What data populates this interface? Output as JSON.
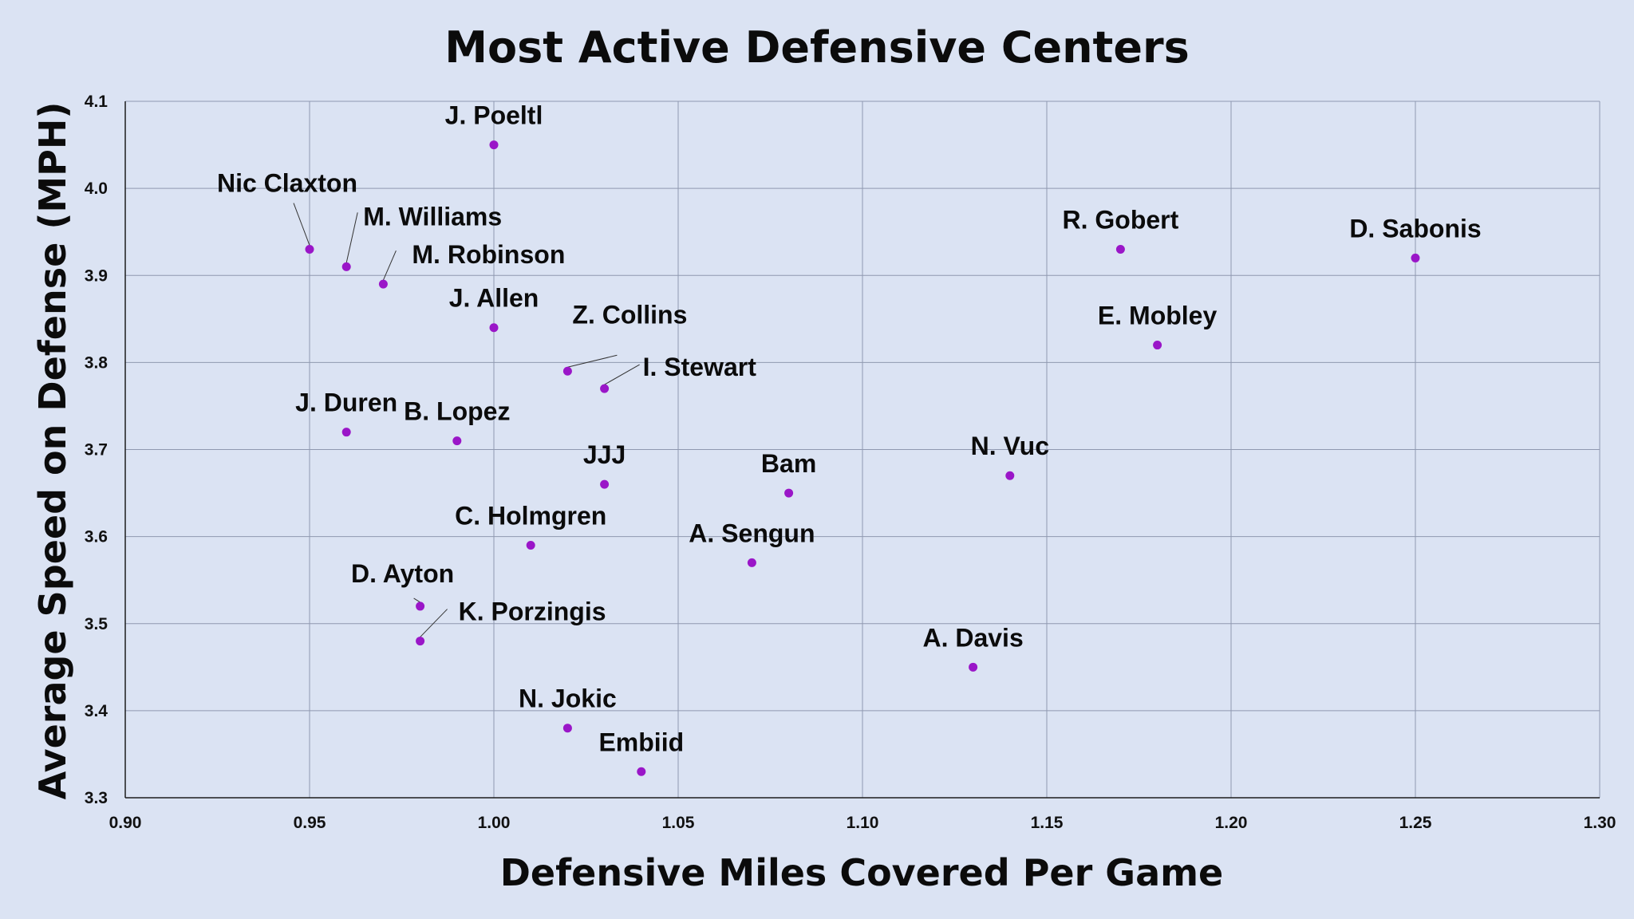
{
  "colors": {
    "background": "#dbe3f3",
    "grid": "#8f98b0",
    "point": "#9a16c8"
  },
  "chart_data": {
    "type": "scatter",
    "title": "Most Active Defensive Centers",
    "xlabel": "Defensive Miles Covered Per Game",
    "ylabel": "Average Speed on Defense (MPH)",
    "xlim": [
      0.9,
      1.3
    ],
    "ylim": [
      3.3,
      4.1
    ],
    "x_ticks": [
      "0.90",
      "0.95",
      "1.00",
      "1.05",
      "1.10",
      "1.15",
      "1.20",
      "1.25",
      "1.30"
    ],
    "y_ticks": [
      "3.3",
      "3.4",
      "3.5",
      "3.6",
      "3.7",
      "3.8",
      "3.9",
      "4.0",
      "4.1"
    ],
    "grid": true,
    "legend": "none",
    "points": [
      {
        "label": "J. Poeltl",
        "x": 1.0,
        "y": 4.05
      },
      {
        "label": "Nic Claxton",
        "x": 0.95,
        "y": 3.93
      },
      {
        "label": "M. Williams",
        "x": 0.96,
        "y": 3.91
      },
      {
        "label": "M. Robinson",
        "x": 0.97,
        "y": 3.89
      },
      {
        "label": "J. Allen",
        "x": 1.0,
        "y": 3.84
      },
      {
        "label": "Z. Collins",
        "x": 1.02,
        "y": 3.79
      },
      {
        "label": "I. Stewart",
        "x": 1.03,
        "y": 3.77
      },
      {
        "label": "J. Duren",
        "x": 0.96,
        "y": 3.72
      },
      {
        "label": "B. Lopez",
        "x": 0.99,
        "y": 3.71
      },
      {
        "label": "JJJ",
        "x": 1.03,
        "y": 3.66
      },
      {
        "label": "Bam",
        "x": 1.08,
        "y": 3.65
      },
      {
        "label": "C. Holmgren",
        "x": 1.01,
        "y": 3.59
      },
      {
        "label": "A. Sengun",
        "x": 1.07,
        "y": 3.57
      },
      {
        "label": "D. Ayton",
        "x": 0.98,
        "y": 3.52
      },
      {
        "label": "K. Porzingis",
        "x": 0.98,
        "y": 3.48
      },
      {
        "label": "N. Jokic",
        "x": 1.02,
        "y": 3.38
      },
      {
        "label": "Embiid",
        "x": 1.04,
        "y": 3.33
      },
      {
        "label": "N. Vuc",
        "x": 1.14,
        "y": 3.67
      },
      {
        "label": "A. Davis",
        "x": 1.13,
        "y": 3.45
      },
      {
        "label": "R. Gobert",
        "x": 1.17,
        "y": 3.93
      },
      {
        "label": "E. Mobley",
        "x": 1.18,
        "y": 3.82
      },
      {
        "label": "D. Sabonis",
        "x": 1.25,
        "y": 3.92
      }
    ]
  }
}
